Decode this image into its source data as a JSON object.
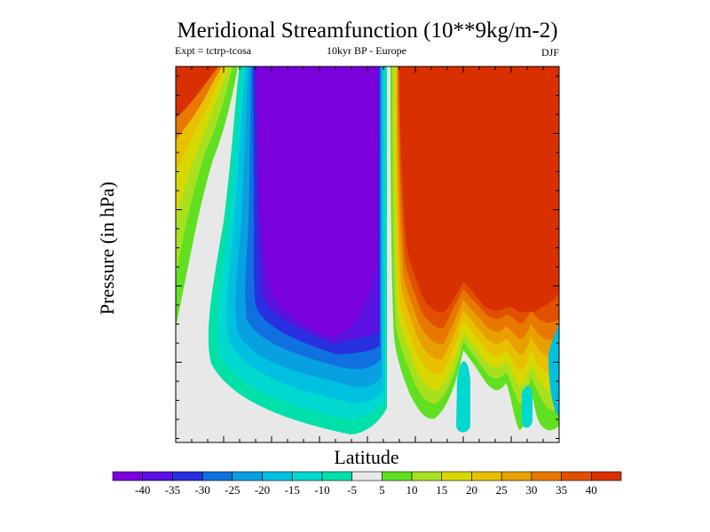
{
  "chart_data": {
    "type": "contour",
    "title": "Meridional Streamfunction (10**9kg/m-2)",
    "subtitle_left": "Expt = tctrp-tcosa",
    "subtitle_center": "10kyr BP - Europe",
    "subtitle_right": "DJF",
    "xlabel": "Latitude",
    "ylabel": "Pressure (in hPa)",
    "colorbar": {
      "labels": [
        "-40",
        "-35",
        "-30",
        "-25",
        "-20",
        "-15",
        "-10",
        "-5",
        "5",
        "10",
        "15",
        "20",
        "25",
        "30",
        "35",
        "40"
      ],
      "levels": [
        -40,
        -35,
        -30,
        -25,
        -20,
        -15,
        -10,
        -5,
        5,
        10,
        15,
        20,
        25,
        30,
        35,
        40
      ],
      "colors": [
        "#7a00dc",
        "#5a10e0",
        "#2830e0",
        "#1070e0",
        "#08a0e0",
        "#00c0e0",
        "#00d8d0",
        "#00e0a8",
        "#e8e8e8",
        "#60e020",
        "#a8e020",
        "#d8d800",
        "#e8c000",
        "#e8a000",
        "#e87800",
        "#e05000",
        "#d83000"
      ]
    },
    "regions": [
      {
        "name": "negative-cell",
        "min_value": -40,
        "approx_lat_range": "tropics south of equator"
      },
      {
        "name": "positive-cell",
        "min_value": 40,
        "approx_lat_range": "north of equator"
      }
    ]
  }
}
